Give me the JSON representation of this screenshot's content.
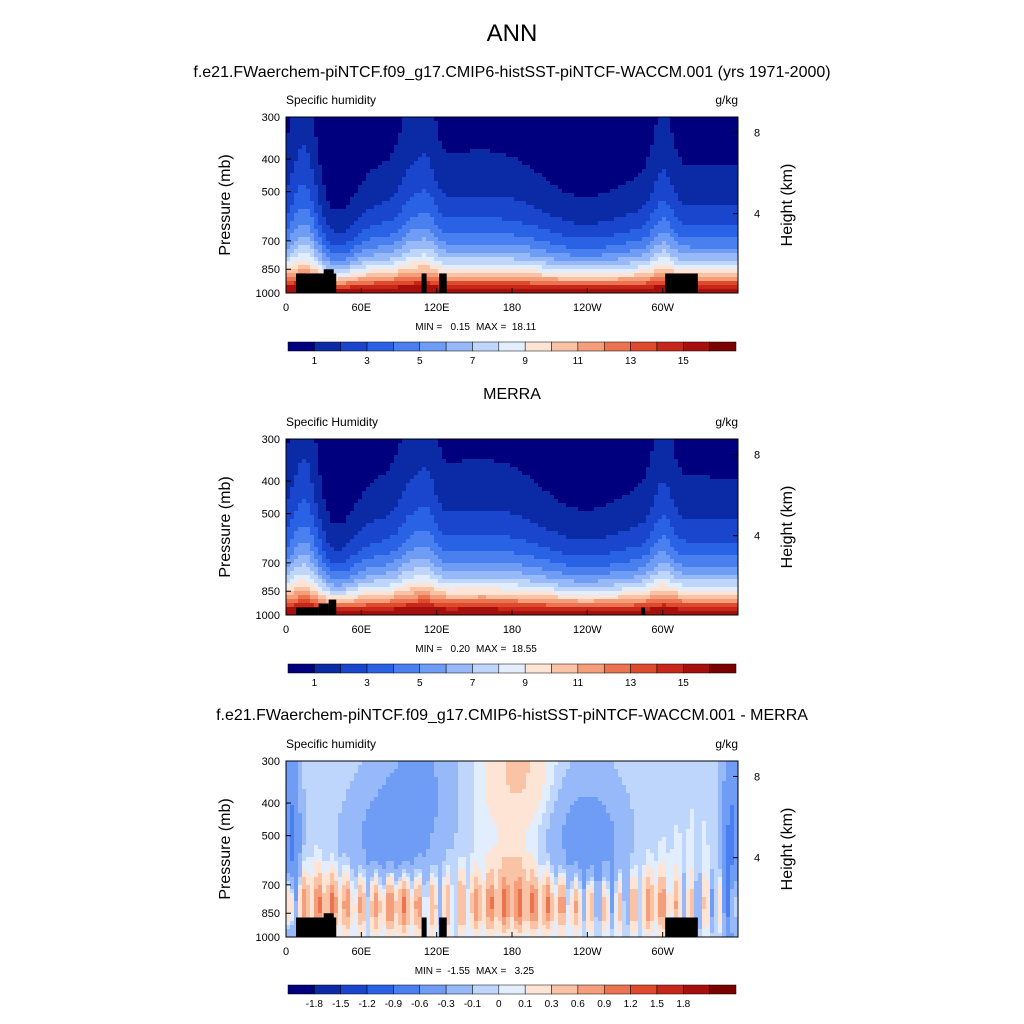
{
  "figure": {
    "main_title": "ANN",
    "panel1_title": "f.e21.FWaerchem-piNTCF.f09_g17.CMIP6-histSST-piNTCF-WACCM.001 (yrs 1971-2000)",
    "panel2_title": "MERRA",
    "panel3_title": "f.e21.FWaerchem-piNTCF.f09_g17.CMIP6-histSST-piNTCF-WACCM.001 - MERRA"
  },
  "chart_data": [
    {
      "type": "heatmap",
      "name": "model",
      "variable": "Specific humidity",
      "units": "g/kg",
      "ylabel": "Pressure (mb)",
      "ylabel_right": "Height (km)",
      "xticks": [
        "0",
        "60E",
        "120E",
        "180",
        "120W",
        "60W"
      ],
      "xtick_lons": [
        0,
        60,
        120,
        180,
        240,
        300
      ],
      "yticks": [
        "300",
        "400",
        "500",
        "700",
        "850",
        "1000"
      ],
      "ytick_values": [
        300,
        400,
        500,
        700,
        850,
        1000
      ],
      "yticks_right": [
        "8",
        "4"
      ],
      "yticks_right_km": [
        8,
        4
      ],
      "ylim": [
        300,
        1000
      ],
      "xlim": [
        0,
        360
      ],
      "min_label": "MIN =   0.15",
      "max_label": "MAX =  18.11",
      "min": 0.15,
      "max": 18.11,
      "colorbar_labels": [
        "1",
        "3",
        "5",
        "7",
        "9",
        "11",
        "13",
        "15"
      ],
      "colorbar_levels": [
        1,
        2,
        3,
        4,
        5,
        6,
        7,
        8,
        9,
        10,
        11,
        12,
        13,
        14,
        15
      ],
      "terrain": [
        [
          8,
          40,
          875
        ],
        [
          30,
          38,
          850
        ],
        [
          108,
          112,
          875
        ],
        [
          122,
          128,
          875
        ],
        [
          302,
          328,
          875
        ]
      ]
    },
    {
      "type": "heatmap",
      "name": "merra",
      "variable": "Specific Humidity",
      "units": "g/kg",
      "ylabel": "Pressure (mb)",
      "ylabel_right": "Height (km)",
      "xticks": [
        "0",
        "60E",
        "120E",
        "180",
        "120W",
        "60W"
      ],
      "xtick_lons": [
        0,
        60,
        120,
        180,
        240,
        300
      ],
      "yticks": [
        "300",
        "400",
        "500",
        "700",
        "850",
        "1000"
      ],
      "ytick_values": [
        300,
        400,
        500,
        700,
        850,
        1000
      ],
      "yticks_right": [
        "8",
        "4"
      ],
      "yticks_right_km": [
        8,
        4
      ],
      "ylim": [
        300,
        1000
      ],
      "xlim": [
        0,
        360
      ],
      "min_label": "MIN =   0.20",
      "max_label": "MAX =  18.55",
      "min": 0.2,
      "max": 18.55,
      "colorbar_labels": [
        "1",
        "3",
        "5",
        "7",
        "9",
        "11",
        "13",
        "15"
      ],
      "colorbar_levels": [
        1,
        2,
        3,
        4,
        5,
        6,
        7,
        8,
        9,
        10,
        11,
        12,
        13,
        14,
        15
      ],
      "terrain": [
        [
          8,
          26,
          950
        ],
        [
          26,
          34,
          925
        ],
        [
          34,
          40,
          900
        ],
        [
          283,
          286,
          950
        ]
      ]
    },
    {
      "type": "heatmap",
      "name": "difference",
      "variable": "Specific humidity",
      "units": "g/kg",
      "ylabel": "Pressure (mb)",
      "ylabel_right": "Height (km)",
      "xticks": [
        "0",
        "60E",
        "120E",
        "180",
        "120W",
        "60W"
      ],
      "xtick_lons": [
        0,
        60,
        120,
        180,
        240,
        300
      ],
      "yticks": [
        "300",
        "400",
        "500",
        "700",
        "850",
        "1000"
      ],
      "ytick_values": [
        300,
        400,
        500,
        700,
        850,
        1000
      ],
      "yticks_right": [
        "8",
        "4"
      ],
      "yticks_right_km": [
        8,
        4
      ],
      "ylim": [
        300,
        1000
      ],
      "xlim": [
        0,
        360
      ],
      "min_label": "MIN =  -1.55",
      "max_label": "MAX =   3.25",
      "min": -1.55,
      "max": 3.25,
      "colorbar_labels": [
        "-1.8",
        "-1.5",
        "-1.2",
        "-0.9",
        "-0.6",
        "-0.3",
        "-0.1",
        "0",
        "0.1",
        "0.3",
        "0.6",
        "0.9",
        "1.2",
        "1.5",
        "1.8"
      ],
      "colorbar_levels": [
        -1.8,
        -1.5,
        -1.2,
        -0.9,
        -0.6,
        -0.3,
        -0.1,
        0,
        0.1,
        0.3,
        0.6,
        0.9,
        1.2,
        1.5,
        1.8
      ],
      "terrain": [
        [
          8,
          40,
          875
        ],
        [
          30,
          38,
          850
        ],
        [
          108,
          112,
          875
        ],
        [
          122,
          128,
          875
        ],
        [
          302,
          328,
          875
        ]
      ]
    }
  ],
  "colors": {
    "palette": [
      "#00007f",
      "#0a2aa6",
      "#1946cc",
      "#2a62e6",
      "#4a7ff0",
      "#6f9cf5",
      "#97b9f9",
      "#bed5fc",
      "#e2edfe",
      "#fde4d4",
      "#fbc3a6",
      "#f59e7c",
      "#ec7350",
      "#df4a2c",
      "#c7261a",
      "#a50f0c",
      "#7a0000"
    ],
    "terrain": "#000000"
  }
}
